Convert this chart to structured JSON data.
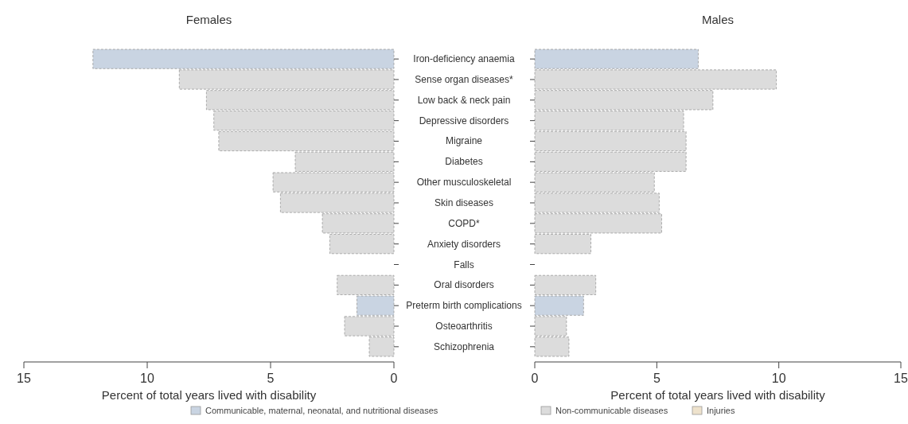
{
  "chart_data": [
    {
      "type": "bar",
      "orientation": "horizontal",
      "title": "Females",
      "xlabel": "Percent of total years lived with disability",
      "categories": [
        "Iron-deficiency anaemia",
        "Sense organ diseases*",
        "Low back & neck pain",
        "Depressive disorders",
        "Migraine",
        "Diabetes",
        "Other musculoskeletal",
        "Skin diseases",
        "COPD*",
        "Anxiety disorders",
        "Falls",
        "Oral disorders",
        "Preterm birth complications",
        "Osteoarthritis",
        "Schizophrenia"
      ],
      "xlim": [
        15,
        0
      ],
      "xticks": [
        15,
        10,
        5,
        0
      ],
      "legend": "bottom",
      "series": [
        {
          "name": "Communicable, maternal, neonatal, and nutritional diseases",
          "color": "#c9d4e2",
          "values": [
            12.2,
            null,
            null,
            null,
            null,
            null,
            null,
            null,
            null,
            null,
            null,
            null,
            1.5,
            null,
            null
          ]
        },
        {
          "name": "Non-communicable diseases",
          "color": "#dcdcdc",
          "values": [
            null,
            8.7,
            7.6,
            7.3,
            7.1,
            4.0,
            4.9,
            4.6,
            2.9,
            2.6,
            null,
            2.3,
            null,
            2.0,
            1.0
          ]
        },
        {
          "name": "Injuries",
          "color": "#eee2cc",
          "values": [
            null,
            null,
            null,
            null,
            null,
            null,
            null,
            null,
            null,
            null,
            null,
            null,
            null,
            null,
            null
          ]
        }
      ]
    },
    {
      "type": "bar",
      "orientation": "horizontal",
      "title": "Males",
      "xlabel": "Percent of total years lived with disability",
      "categories": [
        null,
        null,
        null,
        null,
        null,
        null,
        null,
        null,
        null,
        null,
        null,
        null,
        null,
        null,
        null
      ],
      "xlim": [
        0,
        15
      ],
      "xticks": [
        0,
        5,
        10,
        15
      ],
      "tick_labels": "x",
      "series": [
        {
          "color": "#c9d4e2",
          "values": [
            6.7,
            null,
            null,
            null,
            null,
            null,
            null,
            null,
            null,
            null,
            null,
            null,
            2.0,
            null,
            null
          ]
        },
        {
          "color": "#dcdcdc",
          "values": [
            null,
            9.9,
            7.3,
            6.1,
            6.2,
            6.2,
            4.9,
            5.1,
            5.2,
            2.3,
            null,
            2.5,
            null,
            1.3,
            1.4
          ]
        }
      ]
    }
  ]
}
